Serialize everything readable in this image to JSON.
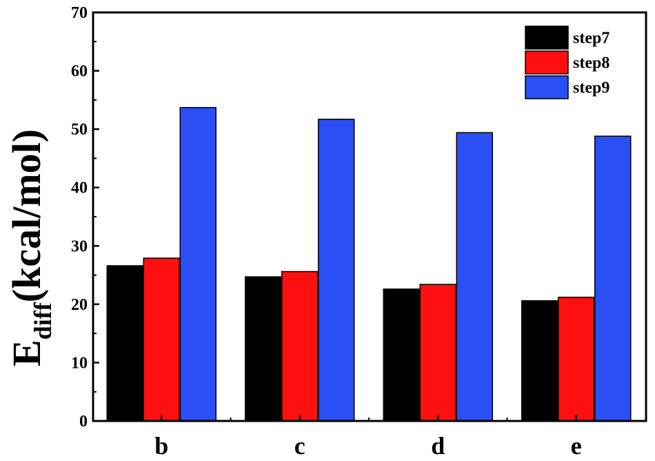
{
  "chart_data": {
    "type": "bar",
    "categories": [
      "b",
      "c",
      "d",
      "e"
    ],
    "series": [
      {
        "name": "step7",
        "color": "#000000",
        "values": [
          26.6,
          24.7,
          22.6,
          20.6
        ]
      },
      {
        "name": "step8",
        "color": "#ff1010",
        "values": [
          27.9,
          25.6,
          23.4,
          21.2
        ]
      },
      {
        "name": "step9",
        "color": "#2a4ff5",
        "values": [
          53.7,
          51.7,
          49.4,
          48.8
        ]
      }
    ],
    "ylabel": {
      "main": "E",
      "sub": "diff",
      "rest": "(kcal/mol)"
    },
    "xlabel": "",
    "ylim": [
      0,
      70
    ],
    "yticks": [
      "0",
      "10",
      "20",
      "30",
      "40",
      "50",
      "60",
      "70"
    ],
    "legend_position": "top-right",
    "grid": false
  }
}
